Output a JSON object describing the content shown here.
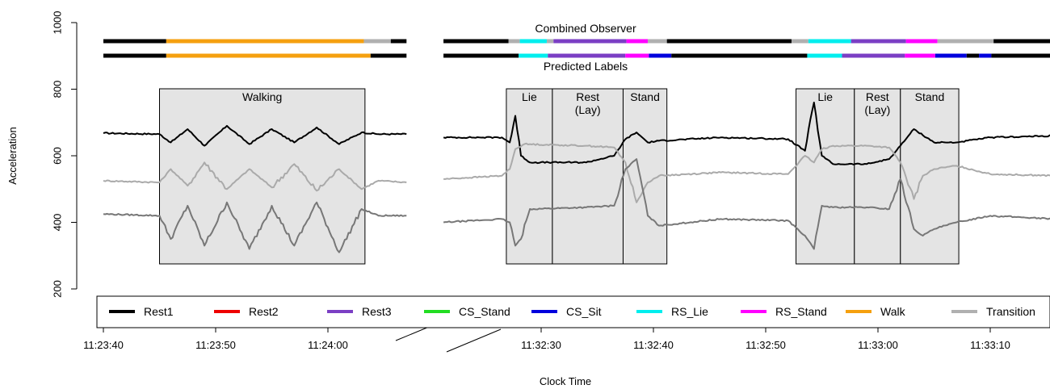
{
  "chart_data": {
    "type": "line",
    "title": "",
    "xlabel": "Clock Time",
    "ylabel": "Acceleration",
    "ylim": [
      200,
      1000
    ],
    "y_ticks": [
      200,
      400,
      600,
      800,
      1000
    ],
    "grid": false,
    "axis_break": true,
    "segments": [
      {
        "tick_labels": [
          "11:23:40",
          "11:23:50",
          "11:24:00"
        ],
        "tick_seconds": [
          0,
          10,
          20
        ],
        "xlim_seconds": [
          0,
          27
        ]
      },
      {
        "tick_labels": [
          "11:32:30",
          "11:32:40",
          "11:32:50",
          "11:33:00",
          "11:33:10"
        ],
        "tick_seconds": [
          0,
          10,
          20,
          30,
          40
        ],
        "xlim_seconds": [
          -8.7,
          45.8
        ]
      }
    ],
    "series": [
      {
        "color": "#000000",
        "baseline": 665,
        "segment1": [
          [
            0,
            668
          ],
          [
            5,
            665
          ],
          [
            6,
            640
          ],
          [
            7.5,
            680
          ],
          [
            9,
            630
          ],
          [
            11,
            690
          ],
          [
            13,
            635
          ],
          [
            15,
            680
          ],
          [
            17,
            640
          ],
          [
            19,
            685
          ],
          [
            21,
            635
          ],
          [
            23,
            670
          ],
          [
            24.5,
            665
          ],
          [
            27,
            665
          ]
        ],
        "segment2": [
          [
            -8.7,
            655
          ],
          [
            -3.5,
            655
          ],
          [
            -2.8,
            640
          ],
          [
            -2.3,
            720
          ],
          [
            -1.8,
            600
          ],
          [
            -1,
            580
          ],
          [
            4,
            580
          ],
          [
            6.5,
            600
          ],
          [
            7.5,
            650
          ],
          [
            8.5,
            670
          ],
          [
            9.5,
            640
          ],
          [
            10.5,
            645
          ],
          [
            16,
            655
          ],
          [
            22,
            650
          ],
          [
            23.5,
            615
          ],
          [
            24.3,
            760
          ],
          [
            25,
            600
          ],
          [
            26,
            575
          ],
          [
            29,
            575
          ],
          [
            31,
            590
          ],
          [
            32,
            630
          ],
          [
            33.2,
            680
          ],
          [
            35,
            640
          ],
          [
            37,
            640
          ],
          [
            40,
            655
          ],
          [
            45.8,
            660
          ]
        ]
      },
      {
        "color": "#aaaaaa",
        "baseline": 525,
        "segment1": [
          [
            0,
            525
          ],
          [
            5,
            520
          ],
          [
            6,
            560
          ],
          [
            7.5,
            510
          ],
          [
            9,
            580
          ],
          [
            11,
            500
          ],
          [
            13,
            560
          ],
          [
            15,
            505
          ],
          [
            17,
            575
          ],
          [
            19,
            495
          ],
          [
            21,
            560
          ],
          [
            23,
            500
          ],
          [
            24.5,
            525
          ],
          [
            27,
            520
          ]
        ],
        "segment2": [
          [
            -8.7,
            530
          ],
          [
            -3.5,
            540
          ],
          [
            -2.8,
            560
          ],
          [
            -2.3,
            620
          ],
          [
            -1.5,
            635
          ],
          [
            4,
            630
          ],
          [
            6.5,
            625
          ],
          [
            7.5,
            580
          ],
          [
            8.5,
            460
          ],
          [
            9.5,
            520
          ],
          [
            10.5,
            540
          ],
          [
            16,
            550
          ],
          [
            22,
            545
          ],
          [
            23.5,
            600
          ],
          [
            24.3,
            580
          ],
          [
            25,
            620
          ],
          [
            26,
            630
          ],
          [
            29,
            630
          ],
          [
            31,
            625
          ],
          [
            32,
            580
          ],
          [
            33.2,
            470
          ],
          [
            34,
            540
          ],
          [
            35,
            560
          ],
          [
            37,
            570
          ],
          [
            40,
            545
          ],
          [
            45.8,
            540
          ]
        ]
      },
      {
        "color": "#777777",
        "baseline": 420,
        "segment1": [
          [
            0,
            425
          ],
          [
            5,
            420
          ],
          [
            6,
            350
          ],
          [
            7.5,
            450
          ],
          [
            9,
            330
          ],
          [
            11,
            460
          ],
          [
            13,
            320
          ],
          [
            15,
            450
          ],
          [
            17,
            330
          ],
          [
            19,
            460
          ],
          [
            21,
            310
          ],
          [
            23,
            440
          ],
          [
            24.5,
            420
          ],
          [
            27,
            420
          ]
        ],
        "segment2": [
          [
            -8.7,
            400
          ],
          [
            -3.5,
            410
          ],
          [
            -2.8,
            400
          ],
          [
            -2.3,
            330
          ],
          [
            -1.8,
            350
          ],
          [
            -1,
            440
          ],
          [
            4,
            445
          ],
          [
            6.5,
            450
          ],
          [
            7.5,
            560
          ],
          [
            8.5,
            590
          ],
          [
            9.5,
            420
          ],
          [
            10.5,
            390
          ],
          [
            16,
            410
          ],
          [
            22,
            405
          ],
          [
            23.5,
            360
          ],
          [
            24.3,
            320
          ],
          [
            25,
            450
          ],
          [
            26,
            445
          ],
          [
            29,
            445
          ],
          [
            31,
            440
          ],
          [
            32,
            530
          ],
          [
            33.2,
            380
          ],
          [
            34,
            360
          ],
          [
            35,
            380
          ],
          [
            37,
            400
          ],
          [
            40,
            420
          ],
          [
            45.8,
            410
          ]
        ]
      }
    ],
    "activity_boxes": [
      {
        "segment": 1,
        "x0": 5,
        "x1": 23.3,
        "label": "Walking"
      },
      {
        "segment": 2,
        "x0": -3.1,
        "x1": 1.0,
        "label": "Lie"
      },
      {
        "segment": 2,
        "x0": 1.0,
        "x1": 7.3,
        "label": "Rest\n(Lay)"
      },
      {
        "segment": 2,
        "x0": 7.3,
        "x1": 11.2,
        "label": "Stand"
      },
      {
        "segment": 2,
        "x0": 22.7,
        "x1": 27.9,
        "label": "Lie"
      },
      {
        "segment": 2,
        "x0": 27.9,
        "x1": 32.0,
        "label": "Rest\n(Lay)"
      },
      {
        "segment": 2,
        "x0": 32.0,
        "x1": 37.2,
        "label": "Stand"
      }
    ],
    "label_bars": [
      {
        "name": "Combined Observer",
        "segment1": [
          [
            "#000000",
            0,
            5.6
          ],
          [
            "#f5a00f",
            5.6,
            23.2
          ],
          [
            "#b0b0b0",
            23.2,
            25.6
          ],
          [
            "#000000",
            25.6,
            27
          ]
        ],
        "segment2": [
          [
            "#000000",
            -8.7,
            -2.9
          ],
          [
            "#b0b0b0",
            -2.9,
            -1.9
          ],
          [
            "#00eeee",
            -1.9,
            0.5
          ],
          [
            "#b0b0b0",
            0.5,
            1.1
          ],
          [
            "#7b3fc4",
            1.1,
            7.6
          ],
          [
            "#ff00ff",
            7.6,
            9.5
          ],
          [
            "#b0b0b0",
            9.5,
            11.2
          ],
          [
            "#000000",
            11.2,
            22.3
          ],
          [
            "#b0b0b0",
            22.3,
            23.8
          ],
          [
            "#00eeee",
            23.8,
            27.6
          ],
          [
            "#7b3fc4",
            27.6,
            32.5
          ],
          [
            "#ff00ff",
            32.5,
            35.3
          ],
          [
            "#b0b0b0",
            35.3,
            40.3
          ],
          [
            "#000000",
            40.3,
            45.8
          ]
        ]
      },
      {
        "name": "Predicted Labels",
        "segment1": [
          [
            "#000000",
            0,
            5.6
          ],
          [
            "#f5a00f",
            5.6,
            23.8
          ],
          [
            "#000000",
            23.8,
            27
          ]
        ],
        "segment2": [
          [
            "#000000",
            -8.7,
            -2.0
          ],
          [
            "#00eeee",
            -2.0,
            0.6
          ],
          [
            "#7b3fc4",
            0.6,
            7.5
          ],
          [
            "#ff00ff",
            7.5,
            9.6
          ],
          [
            "#0000dd",
            9.6,
            11.6
          ],
          [
            "#000000",
            11.6,
            23.7
          ],
          [
            "#00eeee",
            23.7,
            26.8
          ],
          [
            "#7b3fc4",
            26.8,
            32.4
          ],
          [
            "#ff00ff",
            32.4,
            35.1
          ],
          [
            "#0000dd",
            35.1,
            37.9
          ],
          [
            "#000000",
            37.9,
            39.0
          ],
          [
            "#0000dd",
            39.0,
            40.1
          ],
          [
            "#000000",
            40.1,
            45.8
          ]
        ]
      }
    ],
    "legend": {
      "placement": "bottom",
      "entries": [
        {
          "label": "Rest1",
          "color": "#000000"
        },
        {
          "label": "Rest2",
          "color": "#ee0000"
        },
        {
          "label": "Rest3",
          "color": "#7b3fc4"
        },
        {
          "label": "CS_Stand",
          "color": "#22dd22"
        },
        {
          "label": "CS_Sit",
          "color": "#0000dd"
        },
        {
          "label": "RS_Lie",
          "color": "#00eeee"
        },
        {
          "label": "RS_Stand",
          "color": "#ff00ff"
        },
        {
          "label": "Walk",
          "color": "#f5a00f"
        },
        {
          "label": "Transition",
          "color": "#b0b0b0"
        }
      ]
    }
  }
}
